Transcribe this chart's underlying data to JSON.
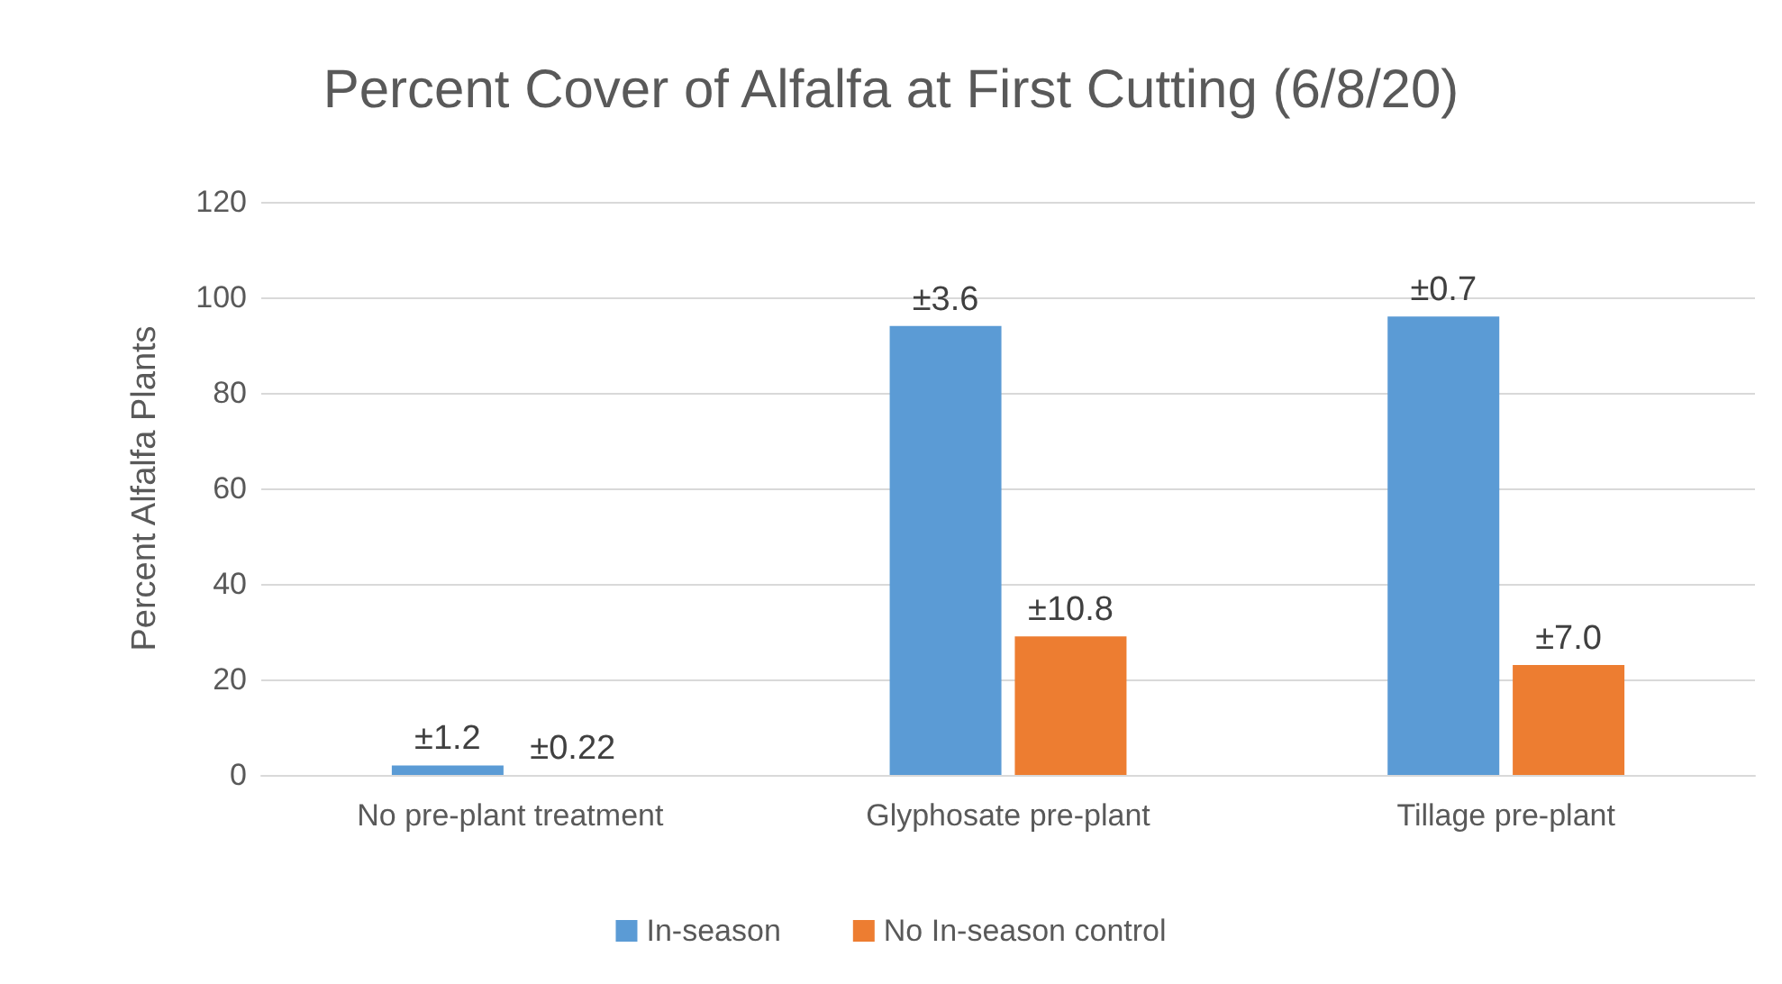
{
  "chart_data": {
    "type": "bar",
    "title": "Percent Cover of Alfalfa at First Cutting (6/8/20)",
    "ylabel": "Percent Alfalfa Plants",
    "categories": [
      "No pre-plant treatment",
      "Glyphosate pre-plant",
      "Tillage pre-plant"
    ],
    "series": [
      {
        "name": "In-season",
        "color": "#5b9bd5",
        "values": [
          2,
          94,
          96
        ]
      },
      {
        "name": "No In-season control",
        "color": "#ed7d31",
        "values": [
          0,
          29,
          23
        ]
      }
    ],
    "annotations": [
      {
        "text": "±1.2",
        "x": "No pre-plant treatment",
        "y": 2
      },
      {
        "text": "±3.6",
        "x": "Glyphosate pre-plant",
        "y": 94
      },
      {
        "text": "±0.7",
        "x": "Tillage pre-plant",
        "y": 96
      },
      {
        "text": "±0.22",
        "x": "No pre-plant treatment",
        "y": 0
      },
      {
        "text": "±10.8",
        "x": "Glyphosate pre-plant",
        "y": 29
      },
      {
        "text": "±7.0",
        "x": "Tillage pre-plant",
        "y": 23
      }
    ],
    "ylim": [
      0,
      120
    ],
    "yticks": [
      0,
      20,
      40,
      60,
      80,
      100,
      120
    ],
    "grid": "y",
    "legend": "bottom"
  }
}
